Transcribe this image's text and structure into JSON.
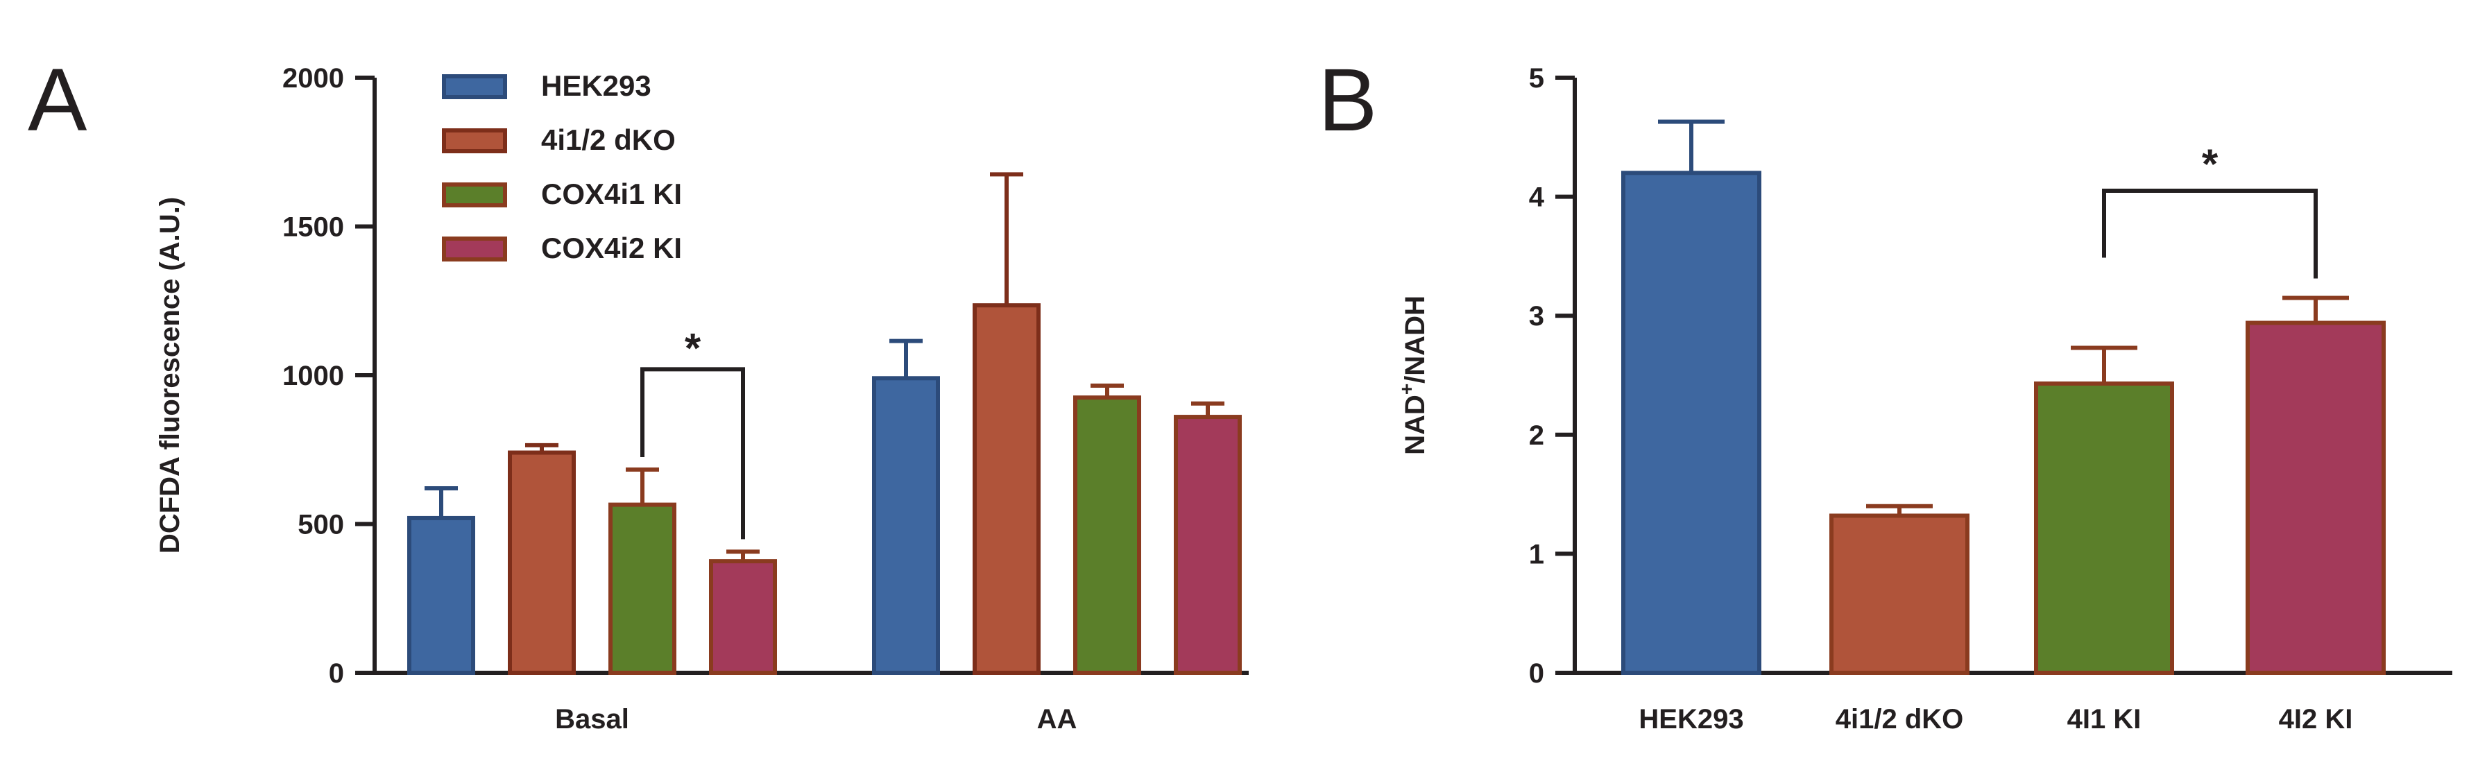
{
  "chart_data": [
    {
      "type": "bar",
      "panel": "A",
      "title": "",
      "xlabel": "",
      "ylabel": "DCFDA fluorescence (A.U.)",
      "ylim": [
        0,
        2000
      ],
      "yticks": [
        0,
        500,
        1000,
        1500,
        2000
      ],
      "ytick_labels": [
        "0",
        "500",
        "1000",
        "1500",
        "2000"
      ],
      "categories": [
        "Basal",
        "AA"
      ],
      "legend_position": "top-left",
      "series": [
        {
          "name": "HEK293",
          "color": "#3e67a0",
          "edge": "#2c4b7a",
          "values": [
            520,
            990
          ],
          "errors": [
            100,
            125
          ]
        },
        {
          "name": "4i1/2 dKO",
          "color": "#b0543a",
          "edge": "#7d2e1a",
          "values": [
            740,
            1235
          ],
          "errors": [
            25,
            440
          ]
        },
        {
          "name": "COX4i1 KI",
          "color": "#5b7f2a",
          "edge": "#8a3b1f",
          "values": [
            565,
            925
          ],
          "errors": [
            118,
            40
          ]
        },
        {
          "name": "COX4i2 KI",
          "color": "#a33a5a",
          "edge": "#8a3b1f",
          "values": [
            375,
            860
          ],
          "errors": [
            32,
            45
          ]
        }
      ],
      "annotations": [
        {
          "text": "*",
          "category": "Basal",
          "from_series": 2,
          "to_series": 3,
          "y": 1020
        }
      ]
    },
    {
      "type": "bar",
      "panel": "B",
      "title": "",
      "xlabel": "",
      "ylabel_main": "NAD",
      "ylabel_sup": "+",
      "ylabel_rest": "/NADH",
      "ylim": [
        0,
        5
      ],
      "yticks": [
        0,
        1,
        2,
        3,
        4,
        5
      ],
      "ytick_labels": [
        "0",
        "1",
        "2",
        "3",
        "4",
        "5"
      ],
      "categories": [
        "HEK293",
        "4i1/2 dKO",
        "4I1 KI",
        "4I2 KI"
      ],
      "values": [
        4.2,
        1.32,
        2.43,
        2.94
      ],
      "errors": [
        0.43,
        0.08,
        0.3,
        0.21
      ],
      "colors": [
        "#3e67a0",
        "#b0543a",
        "#5b7f2a",
        "#a33a5a"
      ],
      "edges": [
        "#2c4b7a",
        "#8a3b1f",
        "#8a3b1f",
        "#8a3b1f"
      ],
      "annotations": [
        {
          "text": "*",
          "from": 2,
          "to": 3,
          "y": 4.05
        }
      ]
    }
  ]
}
